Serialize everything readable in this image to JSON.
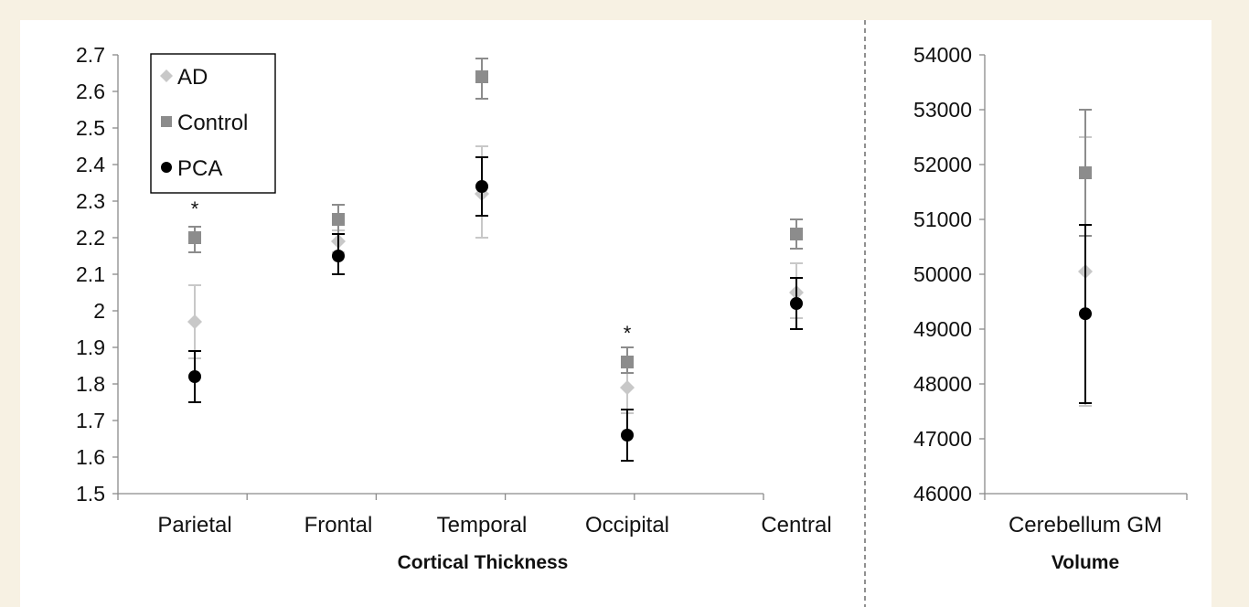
{
  "chart_data": [
    {
      "type": "scatter",
      "title": "",
      "xlabel": "Cortical Thickness",
      "ylabel": "",
      "ylim": [
        1.5,
        2.7
      ],
      "yticks": [
        "1.5",
        "1.6",
        "1.7",
        "1.8",
        "1.9",
        "2",
        "2.1",
        "2.2",
        "2.3",
        "2.4",
        "2.5",
        "2.6",
        "2.7"
      ],
      "categories": [
        "Parietal",
        "Frontal",
        "Temporal",
        "Occipital",
        "Central"
      ],
      "legend": {
        "placement": "top-left",
        "entries": [
          "AD",
          "Control",
          "PCA"
        ]
      },
      "series": [
        {
          "name": "AD",
          "marker": "diamond",
          "color": "#c8c8c8",
          "values": [
            1.97,
            2.19,
            2.32,
            1.79,
            2.05
          ],
          "err_low": [
            1.87,
            2.16,
            2.2,
            1.72,
            1.98
          ],
          "err_high": [
            2.07,
            2.22,
            2.45,
            1.86,
            2.13
          ]
        },
        {
          "name": "Control",
          "marker": "square",
          "color": "#8c8c8c",
          "values": [
            2.2,
            2.25,
            2.64,
            1.86,
            2.21
          ],
          "err_low": [
            2.16,
            2.21,
            2.58,
            1.83,
            2.17
          ],
          "err_high": [
            2.23,
            2.29,
            2.69,
            1.9,
            2.25
          ]
        },
        {
          "name": "PCA",
          "marker": "circle",
          "color": "#000000",
          "values": [
            1.82,
            2.15,
            2.34,
            1.66,
            2.02
          ],
          "err_low": [
            1.75,
            2.1,
            2.26,
            1.59,
            1.95
          ],
          "err_high": [
            1.89,
            2.21,
            2.42,
            1.73,
            2.09
          ]
        }
      ],
      "annotations": [
        {
          "text": "*",
          "category": "Parietal",
          "y": 2.29
        },
        {
          "text": "*",
          "category": "Occipital",
          "y": 1.95
        }
      ]
    },
    {
      "type": "scatter",
      "title": "",
      "xlabel": "Volume",
      "ylabel": "",
      "ylim": [
        46000,
        54000
      ],
      "yticks": [
        "46000",
        "47000",
        "48000",
        "49000",
        "50000",
        "51000",
        "52000",
        "53000",
        "54000"
      ],
      "categories": [
        "Cerebellum GM"
      ],
      "series": [
        {
          "name": "AD",
          "marker": "diamond",
          "color": "#c8c8c8",
          "values": [
            50050
          ],
          "err_low": [
            47600
          ],
          "err_high": [
            52500
          ]
        },
        {
          "name": "Control",
          "marker": "square",
          "color": "#8c8c8c",
          "values": [
            51850
          ],
          "err_low": [
            50700
          ],
          "err_high": [
            53000
          ]
        },
        {
          "name": "PCA",
          "marker": "circle",
          "color": "#000000",
          "values": [
            49280
          ],
          "err_low": [
            47650
          ],
          "err_high": [
            50900
          ]
        }
      ]
    }
  ]
}
